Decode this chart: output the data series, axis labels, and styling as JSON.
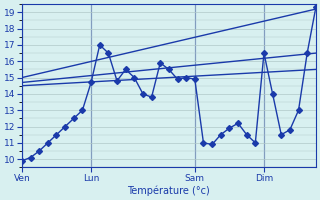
{
  "background_color": "#d8f0f0",
  "grid_color": "#b0c8c8",
  "line_color": "#1a3aaa",
  "ylabel": "Température (°c)",
  "ylim": [
    9.5,
    19.5
  ],
  "yticks": [
    10,
    11,
    12,
    13,
    14,
    15,
    16,
    17,
    18,
    19
  ],
  "xtick_labels": [
    "Ven",
    "Lun",
    "Sam",
    "Dim"
  ],
  "xtick_positions": [
    0,
    8,
    20,
    28
  ],
  "total_points": 35,
  "vline_positions": [
    0,
    8,
    20,
    28
  ],
  "series1": {
    "x": [
      0,
      1,
      2,
      3,
      4,
      5,
      6,
      7,
      8,
      9,
      10,
      11,
      12,
      13,
      14,
      15,
      16,
      17,
      18,
      19,
      20,
      21,
      22,
      23,
      24,
      25,
      26,
      27,
      28,
      29,
      30,
      31,
      32,
      33,
      34
    ],
    "y": [
      9.9,
      10.1,
      10.5,
      11.0,
      11.5,
      12.0,
      12.5,
      13.0,
      14.7,
      17.0,
      16.5,
      14.8,
      15.5,
      15.0,
      14.0,
      13.8,
      15.9,
      15.5,
      14.9,
      15.0,
      14.9,
      11.0,
      10.9,
      11.5,
      11.9,
      12.2,
      11.5,
      11.0,
      16.5,
      14.0,
      11.5,
      11.8,
      13.0,
      16.5,
      19.3
    ]
  },
  "series2_upper": {
    "x": [
      0,
      34
    ],
    "y": [
      15.0,
      19.2
    ]
  },
  "series2_lower": {
    "x": [
      0,
      34
    ],
    "y": [
      14.5,
      15.5
    ]
  },
  "series3": {
    "x": [
      0,
      34
    ],
    "y": [
      14.7,
      16.5
    ]
  }
}
